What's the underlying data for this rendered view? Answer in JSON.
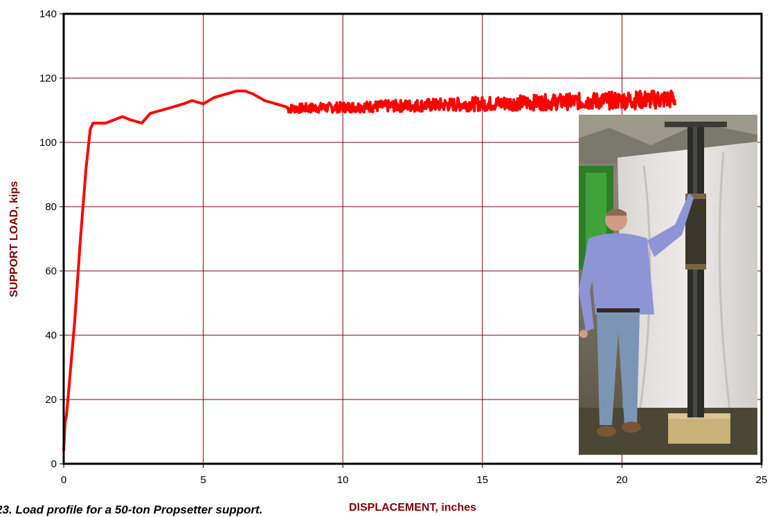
{
  "chart_data": {
    "type": "line",
    "title": "",
    "xlabel": "DISPLACEMENT, inches",
    "ylabel": "SUPPORT LOAD, kips",
    "xlim": [
      0,
      25
    ],
    "ylim": [
      0,
      140
    ],
    "xticks": [
      0,
      5,
      10,
      15,
      20,
      25
    ],
    "yticks": [
      0,
      20,
      40,
      60,
      80,
      100,
      120,
      140
    ],
    "grid": true,
    "legend": "none",
    "line_color": "#ff0000",
    "grid_color": "#800000",
    "label_color": "#800000",
    "series": [
      {
        "x": [
          0,
          0.05,
          0.1,
          0.2,
          0.4,
          0.6,
          0.8,
          0.95,
          1.05,
          1.2,
          1.5,
          1.8,
          2.1,
          2.4,
          2.8,
          3.1,
          3.5,
          3.9,
          4.3,
          4.6,
          5.0,
          5.4,
          5.8,
          6.2,
          6.5,
          6.8,
          7.2,
          7.6,
          8.0
        ],
        "y": [
          4,
          13,
          15,
          25,
          45,
          70,
          92,
          104,
          106,
          106,
          106,
          107,
          108,
          107,
          106,
          109,
          110,
          111,
          112,
          113,
          112,
          114,
          115,
          116,
          116,
          115,
          113,
          112,
          111
        ],
        "noisy_segment": {
          "x_start": 8.0,
          "x_end": 21.9,
          "y_mean_start": 110.5,
          "y_mean_end": 113.5,
          "y_min": 104,
          "y_max": 117
        }
      }
    ],
    "inset_photo": "man-standing-beside-steel-mine-roof-support"
  },
  "caption": {
    "text": "23. Load profile for a 50-ton Propsetter support."
  }
}
